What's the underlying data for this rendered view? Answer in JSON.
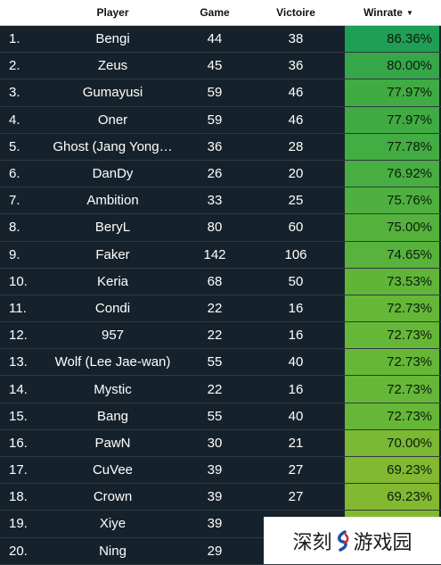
{
  "header": {
    "player": "Player",
    "game": "Game",
    "victoire": "Victoire",
    "winrate": "Winrate"
  },
  "rows": [
    {
      "rank": "1.",
      "player": "Bengi",
      "game": "44",
      "victoire": "38",
      "winrate": "86.36%",
      "color": "#1f9e55"
    },
    {
      "rank": "2.",
      "player": "Zeus",
      "game": "45",
      "victoire": "36",
      "winrate": "80.00%",
      "color": "#35a748"
    },
    {
      "rank": "3.",
      "player": "Gumayusi",
      "game": "59",
      "victoire": "46",
      "winrate": "77.97%",
      "color": "#41ab43"
    },
    {
      "rank": "4.",
      "player": "Oner",
      "game": "59",
      "victoire": "46",
      "winrate": "77.97%",
      "color": "#41ab43"
    },
    {
      "rank": "5.",
      "player": "Ghost (Jang Yong…",
      "game": "36",
      "victoire": "28",
      "winrate": "77.78%",
      "color": "#43ac42"
    },
    {
      "rank": "6.",
      "player": "DanDy",
      "game": "26",
      "victoire": "20",
      "winrate": "76.92%",
      "color": "#48ae41"
    },
    {
      "rank": "7.",
      "player": "Ambition",
      "game": "33",
      "victoire": "25",
      "winrate": "75.76%",
      "color": "#4fb03f"
    },
    {
      "rank": "8.",
      "player": "BeryL",
      "game": "80",
      "victoire": "60",
      "winrate": "75.00%",
      "color": "#55b23d"
    },
    {
      "rank": "9.",
      "player": "Faker",
      "game": "142",
      "victoire": "106",
      "winrate": "74.65%",
      "color": "#58b33c"
    },
    {
      "rank": "10.",
      "player": "Keria",
      "game": "68",
      "victoire": "50",
      "winrate": "73.53%",
      "color": "#60b539"
    },
    {
      "rank": "11.",
      "player": "Condi",
      "game": "22",
      "victoire": "16",
      "winrate": "72.73%",
      "color": "#66b737"
    },
    {
      "rank": "12.",
      "player": "957",
      "game": "22",
      "victoire": "16",
      "winrate": "72.73%",
      "color": "#66b737"
    },
    {
      "rank": "13.",
      "player": "Wolf (Lee Jae-wan)",
      "game": "55",
      "victoire": "40",
      "winrate": "72.73%",
      "color": "#66b737"
    },
    {
      "rank": "14.",
      "player": "Mystic",
      "game": "22",
      "victoire": "16",
      "winrate": "72.73%",
      "color": "#66b737"
    },
    {
      "rank": "15.",
      "player": "Bang",
      "game": "55",
      "victoire": "40",
      "winrate": "72.73%",
      "color": "#66b737"
    },
    {
      "rank": "16.",
      "player": "PawN",
      "game": "30",
      "victoire": "21",
      "winrate": "70.00%",
      "color": "#7bb833"
    },
    {
      "rank": "17.",
      "player": "CuVee",
      "game": "39",
      "victoire": "27",
      "winrate": "69.23%",
      "color": "#82b931"
    },
    {
      "rank": "18.",
      "player": "Crown",
      "game": "39",
      "victoire": "27",
      "winrate": "69.23%",
      "color": "#82b931"
    },
    {
      "rank": "19.",
      "player": "Xiye",
      "game": "39",
      "victoire": "",
      "winrate": "",
      "color": "#82b931"
    },
    {
      "rank": "20.",
      "player": "Ning",
      "game": "29",
      "victoire": "",
      "winrate": "",
      "color": "#8aba2f"
    }
  ],
  "watermark": {
    "text_left": "深刻",
    "text_right": "游戏园"
  }
}
